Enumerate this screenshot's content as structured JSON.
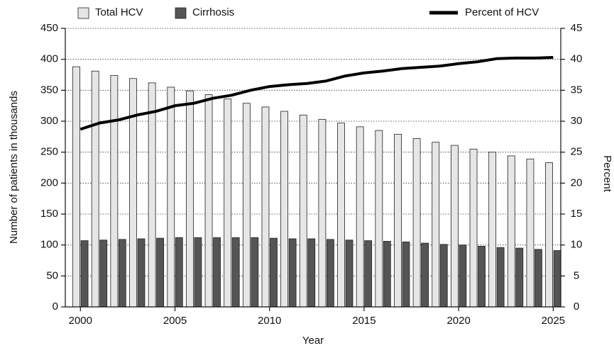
{
  "chart_data": {
    "type": "bar",
    "x": [
      2000,
      2001,
      2002,
      2003,
      2004,
      2005,
      2006,
      2007,
      2008,
      2009,
      2010,
      2011,
      2012,
      2013,
      2014,
      2015,
      2016,
      2017,
      2018,
      2019,
      2020,
      2021,
      2022,
      2023,
      2024,
      2025
    ],
    "xlim": [
      1999.2,
      2025.4
    ],
    "xticks": [
      2000,
      2005,
      2010,
      2015,
      2020,
      2025
    ],
    "xlabel": "Year",
    "ylabel": "Number of patients in thousands",
    "y2label": "Percent",
    "ylim": [
      0,
      450
    ],
    "yticks": [
      0,
      50,
      100,
      150,
      200,
      250,
      300,
      350,
      400,
      450
    ],
    "y2lim": [
      0,
      45
    ],
    "y2ticks": [
      0,
      5,
      10,
      15,
      20,
      25,
      30,
      35,
      40,
      45
    ],
    "grid": true,
    "series": [
      {
        "name": "Total HCV",
        "color": "#e6e6e6",
        "values": [
          388,
          381,
          374,
          369,
          362,
          355,
          349,
          343,
          336,
          329,
          323,
          316,
          310,
          303,
          297,
          291,
          285,
          279,
          272,
          266,
          261,
          255,
          250,
          244,
          239,
          233
        ]
      },
      {
        "name": "Cirrhosis",
        "color": "#555555",
        "values": [
          107,
          108,
          109,
          110,
          111,
          112,
          112,
          112,
          112,
          112,
          111,
          110,
          110,
          109,
          108,
          107,
          106,
          105,
          103,
          101,
          100,
          98,
          96,
          95,
          93,
          91
        ]
      },
      {
        "name": "Percent of HCV",
        "color": "#000000",
        "type": "line",
        "axis": "y2",
        "values": [
          28.7,
          29.7,
          30.2,
          31.0,
          31.6,
          32.5,
          32.9,
          33.7,
          34.2,
          35.0,
          35.6,
          35.9,
          36.1,
          36.5,
          37.3,
          37.8,
          38.1,
          38.5,
          38.7,
          38.9,
          39.3,
          39.6,
          40.1,
          40.2,
          40.2,
          40.3
        ]
      }
    ]
  }
}
